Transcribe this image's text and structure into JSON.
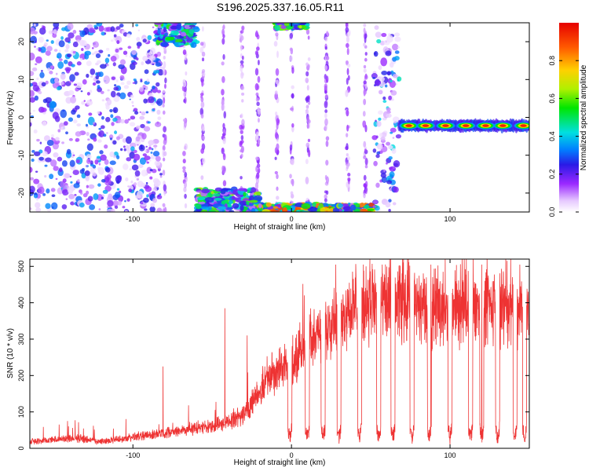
{
  "title": "S196.2025.337.16.05.R11",
  "chart_data": [
    {
      "type": "heatmap",
      "xlabel": "Height of straight line (km)",
      "ylabel": "Frequency (Hz)",
      "xlim": [
        -165,
        150
      ],
      "ylim": [
        -25,
        25
      ],
      "x_ticks": [
        -100,
        0,
        100
      ],
      "y_ticks": [
        -20,
        -10,
        0,
        10,
        20
      ],
      "colorbar": {
        "label": "Normalized spectral amplitude",
        "range": [
          0,
          1
        ],
        "ticks": [
          "0.0",
          "0.2",
          "0.4",
          "0.6",
          "0.8"
        ],
        "colormap": [
          "#ffffff",
          "#e6c8ff",
          "#9a28ff",
          "#2a1ae6",
          "#0080ff",
          "#00e0e0",
          "#00e600",
          "#b0f000",
          "#ffd000",
          "#ff5a00",
          "#e60000"
        ]
      },
      "features": [
        {
          "region": "noise",
          "x_range": [
            -165,
            -82
          ],
          "y_range": [
            -25,
            25
          ],
          "level": 0.25
        },
        {
          "region": "stripes",
          "x_range": [
            -82,
            55
          ],
          "y_range": [
            -25,
            25
          ],
          "level": 0.15
        },
        {
          "region": "band-top",
          "x_range": [
            -85,
            -60
          ],
          "y_range": [
            19,
            25
          ],
          "level": 0.5
        },
        {
          "region": "band-top",
          "x_range": [
            -10,
            10
          ],
          "y_range": [
            23.5,
            25
          ],
          "level": 0.6
        },
        {
          "region": "band-bottom",
          "x_range": [
            -60,
            -20
          ],
          "y_range": [
            -25,
            -19
          ],
          "level": 0.55
        },
        {
          "region": "band-bottom",
          "x_range": [
            -20,
            53
          ],
          "y_range": [
            -25,
            -23
          ],
          "level": 0.85
        },
        {
          "region": "noise",
          "x_range": [
            52,
            68
          ],
          "y_range": [
            -25,
            25
          ],
          "level": 0.3
        },
        {
          "region": "tone",
          "x_range": [
            68,
            150
          ],
          "y": -2.2,
          "level": 0.95
        }
      ]
    },
    {
      "type": "line",
      "xlabel": "Height of straight line (km)",
      "ylabel": "SNR (10 * v/v)",
      "xlim": [
        -165,
        150
      ],
      "ylim": [
        0,
        520
      ],
      "x_ticks": [
        -100,
        0,
        100
      ],
      "y_ticks": [
        0,
        100,
        200,
        300,
        400,
        500
      ],
      "color": "#ee3333",
      "x": [
        -165,
        -150,
        -135,
        -120,
        -105,
        -90,
        -75,
        -60,
        -45,
        -30,
        -20,
        -10,
        0,
        10,
        20,
        30,
        40,
        50,
        60,
        70,
        80,
        90,
        100,
        110,
        120,
        130,
        140,
        150
      ],
      "values": [
        20,
        25,
        30,
        20,
        30,
        40,
        50,
        60,
        70,
        100,
        170,
        240,
        250,
        320,
        360,
        400,
        420,
        420,
        430,
        430,
        420,
        430,
        420,
        420,
        410,
        420,
        420,
        410
      ],
      "spikes": [
        {
          "x": -81,
          "y": 225
        },
        {
          "x": -42,
          "y": 385
        },
        {
          "x": -28,
          "y": 310
        },
        {
          "x": 8,
          "y": 420
        },
        {
          "x": 28,
          "y": 505
        },
        {
          "x": 47,
          "y": 500
        },
        {
          "x": 70,
          "y": 520
        },
        {
          "x": 88,
          "y": 505
        },
        {
          "x": 109,
          "y": 520
        },
        {
          "x": 120,
          "y": 505
        },
        {
          "x": 136,
          "y": 515
        },
        {
          "x": 144,
          "y": 505
        }
      ],
      "dropouts": [
        -1,
        10,
        20,
        30,
        43,
        55,
        64,
        76,
        87,
        100,
        113,
        120,
        130,
        141,
        147
      ]
    }
  ]
}
